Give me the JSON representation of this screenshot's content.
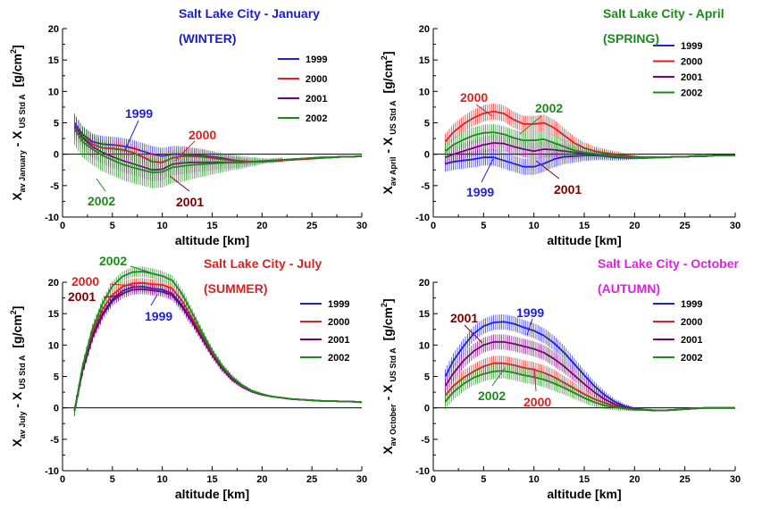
{
  "chart_data": [
    {
      "type": "line",
      "title": "Salt Lake City - January",
      "subtitle": "(WINTER)",
      "title_color": "#1a1adf",
      "xlabel": "altitude [km]",
      "ylabel_main": "X",
      "ylabel_sub1": "av January",
      "ylabel_mid": " - X",
      "ylabel_sub2": "US Std A",
      "ylabel_unit": "[g/cm",
      "ylabel_sup": "2",
      "ylabel_end": "]",
      "xlim": [
        0,
        30
      ],
      "ylim": [
        -10,
        20
      ],
      "xticks": [
        "0",
        "5",
        "10",
        "15",
        "20",
        "25",
        "30"
      ],
      "yticks": [
        "-10",
        "-5",
        "0",
        "5",
        "10",
        "15",
        "20"
      ],
      "legend": "top-right",
      "x": [
        1.2,
        2,
        3,
        4,
        5,
        6,
        7,
        8,
        9,
        10,
        11,
        12,
        13,
        14,
        15,
        16,
        17,
        18,
        19,
        20,
        21,
        22,
        23,
        24,
        25,
        26,
        27,
        28,
        29,
        30
      ],
      "series": [
        {
          "name": "1999",
          "color": "#1f1fe0",
          "err": 1.3,
          "values": [
            5.0,
            3.2,
            2.0,
            1.6,
            1.5,
            1.3,
            1.0,
            0.5,
            0.0,
            -0.3,
            0.0,
            0.0,
            -0.1,
            -0.2,
            -0.4,
            -0.6,
            -0.9,
            -1.1,
            -1.2,
            -1.2,
            -1.1,
            -1.0,
            -0.9,
            -0.8,
            -0.7,
            -0.6,
            -0.5,
            -0.4,
            -0.4,
            -0.3
          ]
        },
        {
          "name": "2000",
          "color": "#e01f1f",
          "err": 1.3,
          "values": [
            4.5,
            2.8,
            1.6,
            1.0,
            0.9,
            0.7,
            0.3,
            -0.4,
            -1.2,
            -1.3,
            -0.6,
            -0.3,
            -0.3,
            -0.4,
            -0.6,
            -0.8,
            -1.0,
            -1.1,
            -1.2,
            -1.2,
            -1.1,
            -1.0,
            -0.9,
            -0.8,
            -0.7,
            -0.6,
            -0.5,
            -0.4,
            -0.4,
            -0.3
          ]
        },
        {
          "name": "2001",
          "color": "#7a007a",
          "err": 1.8,
          "values": [
            4.5,
            2.6,
            1.2,
            0.3,
            -0.4,
            -1.0,
            -1.5,
            -2.0,
            -2.5,
            -2.4,
            -1.6,
            -1.4,
            -1.3,
            -1.3,
            -1.3,
            -1.3,
            -1.3,
            -1.3,
            -1.2,
            -1.1,
            -1.0,
            -0.9,
            -0.8,
            -0.7,
            -0.6,
            -0.5,
            -0.5,
            -0.4,
            -0.4,
            -0.3
          ]
        },
        {
          "name": "2002",
          "color": "#1a8a1a",
          "err": 2.5,
          "values": [
            4.0,
            2.0,
            0.8,
            -0.2,
            -0.9,
            -1.6,
            -2.1,
            -2.5,
            -2.9,
            -2.8,
            -2.1,
            -1.9,
            -1.7,
            -1.6,
            -1.5,
            -1.4,
            -1.3,
            -1.3,
            -1.2,
            -1.1,
            -1.0,
            -0.9,
            -0.8,
            -0.7,
            -0.6,
            -0.5,
            -0.5,
            -0.4,
            -0.4,
            -0.3
          ]
        }
      ],
      "annotations": [
        {
          "text": "1999",
          "color": "#1f1fe0"
        },
        {
          "text": "2000",
          "color": "#e01f1f"
        },
        {
          "text": "2001",
          "color": "#7a0000"
        },
        {
          "text": "2002",
          "color": "#1a8a1a"
        }
      ]
    },
    {
      "type": "line",
      "title": "Salt Lake City - April",
      "subtitle": "(SPRING)",
      "title_color": "#1a8a1a",
      "xlabel": "altitude [km]",
      "ylabel_main": "X",
      "ylabel_sub1": "av April",
      "ylabel_mid": " - X",
      "ylabel_sub2": "US Std A",
      "ylabel_unit": "[g/cm",
      "ylabel_sup": "2",
      "ylabel_end": "]",
      "xlim": [
        0,
        30
      ],
      "ylim": [
        -10,
        20
      ],
      "xticks": [
        "0",
        "5",
        "10",
        "15",
        "20",
        "25",
        "30"
      ],
      "yticks": [
        "-10",
        "-5",
        "0",
        "5",
        "10",
        "15",
        "20"
      ],
      "legend": "top-right",
      "x": [
        1.2,
        2,
        3,
        4,
        5,
        6,
        7,
        8,
        9,
        10,
        11,
        12,
        13,
        14,
        15,
        16,
        17,
        18,
        19,
        20,
        21,
        22,
        23,
        24,
        25,
        26,
        27,
        28,
        29,
        30
      ],
      "series": [
        {
          "name": "1999",
          "color": "#1f1fe0",
          "err": 1.3,
          "values": [
            -1.5,
            -1.2,
            -1.0,
            -0.8,
            -0.5,
            -0.5,
            -1.0,
            -1.5,
            -2.0,
            -2.0,
            -1.5,
            -0.8,
            -0.4,
            -0.3,
            -0.2,
            -0.2,
            -0.3,
            -0.5,
            -0.6,
            -0.6,
            -0.6,
            -0.5,
            -0.5,
            -0.4,
            -0.4,
            -0.3,
            -0.3,
            -0.2,
            -0.2,
            -0.2
          ]
        },
        {
          "name": "2000",
          "color": "#e01f1f",
          "err": 1.3,
          "values": [
            2.0,
            3.5,
            4.8,
            5.8,
            6.5,
            6.8,
            6.5,
            5.5,
            4.8,
            4.8,
            5.0,
            4.2,
            3.0,
            1.8,
            1.0,
            0.5,
            0.2,
            0.0,
            -0.2,
            -0.4,
            -0.5,
            -0.5,
            -0.5,
            -0.4,
            -0.4,
            -0.3,
            -0.3,
            -0.2,
            -0.2,
            -0.2
          ]
        },
        {
          "name": "2001",
          "color": "#7a007a",
          "err": 1.3,
          "values": [
            -0.5,
            0.0,
            0.5,
            1.0,
            1.5,
            1.8,
            1.7,
            1.2,
            0.8,
            0.5,
            0.8,
            0.7,
            0.5,
            0.3,
            0.1,
            0.0,
            -0.1,
            -0.3,
            -0.4,
            -0.5,
            -0.5,
            -0.5,
            -0.5,
            -0.4,
            -0.4,
            -0.3,
            -0.3,
            -0.2,
            -0.2,
            -0.2
          ]
        },
        {
          "name": "2002",
          "color": "#1a8a1a",
          "err": 1.3,
          "values": [
            0.5,
            1.5,
            2.3,
            3.0,
            3.4,
            3.5,
            3.2,
            2.6,
            2.2,
            2.2,
            2.4,
            1.8,
            1.2,
            0.6,
            0.3,
            0.1,
            -0.1,
            -0.3,
            -0.4,
            -0.5,
            -0.5,
            -0.5,
            -0.5,
            -0.4,
            -0.4,
            -0.3,
            -0.3,
            -0.2,
            -0.2,
            -0.2
          ]
        }
      ],
      "annotations": [
        {
          "text": "2000",
          "color": "#e01f1f"
        },
        {
          "text": "2002",
          "color": "#1a8a1a"
        },
        {
          "text": "1999",
          "color": "#1f1fe0"
        },
        {
          "text": "2001",
          "color": "#7a0000"
        }
      ]
    },
    {
      "type": "line",
      "title": "Salt Lake City - July",
      "subtitle": "(SUMMER)",
      "title_color": "#e01f1f",
      "xlabel": "altitude [km]",
      "ylabel_main": "X",
      "ylabel_sub1": "av July",
      "ylabel_mid": " - X",
      "ylabel_sub2": "US Std A",
      "ylabel_unit": "[g/cm",
      "ylabel_sup": "2",
      "ylabel_end": "]",
      "xlim": [
        0,
        30
      ],
      "ylim": [
        -10,
        20
      ],
      "xticks": [
        "0",
        "5",
        "10",
        "15",
        "20",
        "25",
        "30"
      ],
      "yticks": [
        "-10",
        "-5",
        "0",
        "5",
        "10",
        "15",
        "20"
      ],
      "legend": "top-right",
      "x": [
        1.2,
        2,
        3,
        4,
        5,
        6,
        7,
        8,
        9,
        10,
        11,
        12,
        13,
        14,
        15,
        16,
        17,
        18,
        19,
        20,
        21,
        22,
        23,
        24,
        25,
        26,
        27,
        28,
        29,
        30
      ],
      "series": [
        {
          "name": "1999",
          "color": "#1f1fe0",
          "err": 0.8,
          "values": [
            -0.5,
            6.0,
            11.5,
            15.0,
            17.3,
            18.6,
            19.2,
            19.3,
            19.0,
            18.8,
            18.2,
            16.3,
            13.8,
            11.1,
            8.5,
            6.3,
            4.6,
            3.4,
            2.6,
            2.1,
            1.8,
            1.6,
            1.4,
            1.3,
            1.2,
            1.1,
            1.1,
            1.0,
            1.0,
            0.9
          ]
        },
        {
          "name": "2000",
          "color": "#e01f1f",
          "err": 0.8,
          "values": [
            -0.5,
            6.2,
            12.0,
            15.7,
            18.0,
            19.3,
            19.8,
            19.9,
            19.7,
            19.6,
            19.0,
            17.0,
            14.3,
            11.5,
            8.8,
            6.5,
            4.8,
            3.5,
            2.7,
            2.2,
            1.8,
            1.6,
            1.4,
            1.3,
            1.2,
            1.1,
            1.1,
            1.0,
            1.0,
            0.9
          ]
        },
        {
          "name": "2001",
          "color": "#7a007a",
          "err": 0.8,
          "values": [
            -0.5,
            5.8,
            11.2,
            14.7,
            17.0,
            18.2,
            18.8,
            18.9,
            18.7,
            18.5,
            17.9,
            16.0,
            13.6,
            11.0,
            8.4,
            6.2,
            4.5,
            3.4,
            2.6,
            2.1,
            1.8,
            1.6,
            1.4,
            1.3,
            1.2,
            1.1,
            1.1,
            1.0,
            1.0,
            0.9
          ]
        },
        {
          "name": "2002",
          "color": "#1a8a1a",
          "err": 0.8,
          "values": [
            -0.5,
            6.5,
            12.6,
            16.6,
            19.4,
            20.9,
            21.6,
            21.7,
            21.4,
            21.0,
            20.3,
            18.1,
            15.1,
            12.0,
            9.1,
            6.7,
            4.9,
            3.6,
            2.7,
            2.2,
            1.8,
            1.6,
            1.4,
            1.3,
            1.2,
            1.1,
            1.1,
            1.0,
            1.0,
            0.9
          ]
        }
      ],
      "annotations": [
        {
          "text": "2002",
          "color": "#1a8a1a"
        },
        {
          "text": "2000",
          "color": "#e01f1f"
        },
        {
          "text": "2001",
          "color": "#7a0000"
        },
        {
          "text": "1999",
          "color": "#1f1fe0"
        }
      ]
    },
    {
      "type": "line",
      "title": "Salt Lake City - October",
      "subtitle": "(AUTUMN)",
      "title_color": "#e020e0",
      "xlabel": "altitude [km]",
      "ylabel_main": "X",
      "ylabel_sub1": "av October",
      "ylabel_mid": " - X",
      "ylabel_sub2": "US Std A",
      "ylabel_unit": "[g/cm",
      "ylabel_sup": "2",
      "ylabel_end": "]",
      "xlim": [
        0,
        30
      ],
      "ylim": [
        -10,
        20
      ],
      "xticks": [
        "0",
        "5",
        "10",
        "15",
        "20",
        "25",
        "30"
      ],
      "yticks": [
        "-10",
        "-5",
        "0",
        "5",
        "10",
        "15",
        "20"
      ],
      "legend": "top-right",
      "x": [
        1.2,
        2,
        3,
        4,
        5,
        6,
        7,
        8,
        9,
        10,
        11,
        12,
        13,
        14,
        15,
        16,
        17,
        18,
        19,
        20,
        21,
        22,
        23,
        24,
        25,
        26,
        27,
        28,
        29,
        30
      ],
      "series": [
        {
          "name": "1999",
          "color": "#1f1fe0",
          "err": 1.2,
          "values": [
            5.0,
            7.5,
            9.8,
            11.8,
            13.0,
            13.6,
            13.7,
            13.4,
            12.8,
            12.3,
            11.5,
            10.3,
            8.8,
            7.0,
            5.2,
            3.5,
            2.1,
            1.0,
            0.3,
            -0.1,
            -0.3,
            -0.4,
            -0.4,
            -0.3,
            -0.2,
            -0.1,
            0.0,
            0.0,
            0.0,
            0.0
          ]
        },
        {
          "name": "2000",
          "color": "#e01f1f",
          "err": 1.2,
          "values": [
            2.0,
            3.5,
            4.8,
            5.8,
            6.6,
            7.1,
            7.1,
            6.8,
            6.4,
            6.1,
            5.6,
            4.9,
            4.0,
            3.1,
            2.2,
            1.4,
            0.8,
            0.3,
            0.0,
            -0.2,
            -0.3,
            -0.4,
            -0.4,
            -0.3,
            -0.2,
            -0.1,
            0.0,
            0.0,
            0.0,
            0.0
          ]
        },
        {
          "name": "2001",
          "color": "#7a007a",
          "err": 1.2,
          "values": [
            3.5,
            5.5,
            7.5,
            9.0,
            10.0,
            10.5,
            10.5,
            10.2,
            9.8,
            9.4,
            8.8,
            7.8,
            6.6,
            5.2,
            3.8,
            2.5,
            1.4,
            0.6,
            0.1,
            -0.2,
            -0.3,
            -0.4,
            -0.4,
            -0.3,
            -0.2,
            -0.1,
            0.0,
            0.0,
            0.0,
            0.0
          ]
        },
        {
          "name": "2002",
          "color": "#1a8a1a",
          "err": 1.2,
          "values": [
            1.0,
            2.5,
            3.8,
            4.8,
            5.4,
            5.8,
            5.9,
            5.6,
            5.2,
            4.9,
            4.5,
            3.9,
            3.2,
            2.4,
            1.6,
            0.9,
            0.4,
            0.1,
            -0.1,
            -0.3,
            -0.3,
            -0.4,
            -0.4,
            -0.3,
            -0.2,
            -0.1,
            0.0,
            0.0,
            0.0,
            0.0
          ]
        }
      ],
      "annotations": [
        {
          "text": "2001",
          "color": "#7a0000"
        },
        {
          "text": "1999",
          "color": "#1f1fe0"
        },
        {
          "text": "2002",
          "color": "#1a8a1a"
        },
        {
          "text": "2000",
          "color": "#e01f1f"
        }
      ]
    }
  ]
}
